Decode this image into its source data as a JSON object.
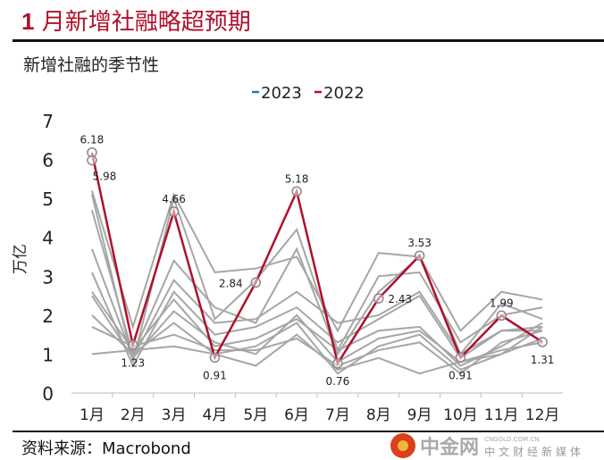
{
  "header": {
    "title_num": "1",
    "title": "月新增社融略超预期",
    "subtitle": "新增社融的季节性",
    "source": "资料来源：Macrobond"
  },
  "watermark": {
    "brand": "中金网",
    "domain": "CNGOLD.COM.CN",
    "tagline": "中文财经新媒体"
  },
  "chart_data": {
    "type": "line",
    "title": "新增社融的季节性",
    "ylabel": "万亿",
    "ylim": [
      0,
      7
    ],
    "yticks": [
      "0",
      "1",
      "2",
      "3",
      "4",
      "5",
      "6",
      "7"
    ],
    "categories": [
      "1月",
      "2月",
      "3月",
      "4月",
      "5月",
      "6月",
      "7月",
      "8月",
      "9月",
      "10月",
      "11月",
      "12月"
    ],
    "legend": {
      "position": "top",
      "entries": [
        "2023",
        "2022"
      ]
    },
    "colors": {
      "2023": "#2e75b6",
      "2022": "#b0102a",
      "history": "#a6a6a6"
    },
    "series": [
      {
        "name": "2023",
        "values": [
          5.98,
          null,
          null,
          null,
          null,
          null,
          null,
          null,
          null,
          null,
          null,
          null
        ]
      },
      {
        "name": "2022",
        "values": [
          6.18,
          1.23,
          4.66,
          0.91,
          2.84,
          5.18,
          0.76,
          2.43,
          3.53,
          0.91,
          1.99,
          1.31
        ],
        "labels": [
          "6.18",
          "1.23",
          "4.66",
          "0.91",
          "2.84",
          "5.18",
          "0.76",
          "2.43",
          "3.53",
          "0.91",
          "1.99",
          "1.31"
        ]
      }
    ],
    "history": [
      [
        5.2,
        1.7,
        5.1,
        3.1,
        3.2,
        3.5,
        1.6,
        3.6,
        3.5,
        1.6,
        2.6,
        2.4
      ],
      [
        5.1,
        0.8,
        5.0,
        1.9,
        2.9,
        4.2,
        1.1,
        3.0,
        3.1,
        1.3,
        2.0,
        2.2
      ],
      [
        4.7,
        1.0,
        3.4,
        2.2,
        1.8,
        3.7,
        1.0,
        2.6,
        3.5,
        1.0,
        2.3,
        1.9
      ],
      [
        3.7,
        0.9,
        2.9,
        1.8,
        1.9,
        2.6,
        1.8,
        2.0,
        2.6,
        1.0,
        1.6,
        1.7
      ],
      [
        3.1,
        0.7,
        2.6,
        1.5,
        1.7,
        2.2,
        1.3,
        1.9,
        2.5,
        0.9,
        1.6,
        1.6
      ],
      [
        2.6,
        1.1,
        2.4,
        1.2,
        1.4,
        1.9,
        1.1,
        1.6,
        1.7,
        0.7,
        1.2,
        1.8
      ],
      [
        2.5,
        0.9,
        2.1,
        1.3,
        1.0,
        2.0,
        0.8,
        1.4,
        1.6,
        0.8,
        1.1,
        1.3
      ],
      [
        2.0,
        1.0,
        1.8,
        1.0,
        1.2,
        1.8,
        0.5,
        1.2,
        1.5,
        0.6,
        1.0,
        1.7
      ],
      [
        1.7,
        1.2,
        1.5,
        1.1,
        1.1,
        1.4,
        0.7,
        1.1,
        1.3,
        0.5,
        1.3,
        1.6
      ],
      [
        1.0,
        1.1,
        1.2,
        1.0,
        0.7,
        1.5,
        0.6,
        0.9,
        0.5,
        0.8,
        1.0,
        1.4
      ]
    ]
  }
}
